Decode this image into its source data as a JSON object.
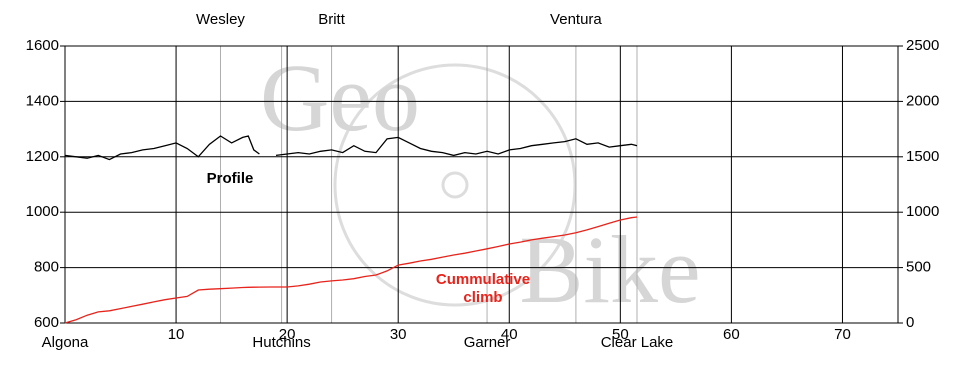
{
  "chart_data": {
    "type": "line",
    "watermark": [
      "Geo",
      "Bike"
    ],
    "x": [
      0,
      1,
      2,
      3,
      4,
      5,
      6,
      7,
      8,
      9,
      10,
      11,
      12,
      13,
      14,
      15,
      16,
      16.5,
      17,
      17.5,
      18.5,
      19,
      20,
      21,
      22,
      23,
      24,
      25,
      26,
      27,
      28,
      29,
      30,
      31,
      32,
      33,
      34,
      35,
      36,
      37,
      38,
      39,
      40,
      41,
      42,
      43,
      44,
      45,
      46,
      47,
      48,
      49,
      50,
      51,
      51.5
    ],
    "series": [
      {
        "name": "Profile",
        "color": "#000000",
        "values": [
          1205,
          1200,
          1195,
          1205,
          1190,
          1210,
          1215,
          1225,
          1230,
          1240,
          1250,
          1230,
          1200,
          1245,
          1275,
          1250,
          1270,
          1275,
          1225,
          1210,
          null,
          1205,
          1210,
          1215,
          1210,
          1220,
          1225,
          1215,
          1240,
          1220,
          1215,
          1265,
          1270,
          1250,
          1230,
          1220,
          1215,
          1205,
          1215,
          1210,
          1220,
          1210,
          1225,
          1230,
          1240,
          1245,
          1250,
          1255,
          1265,
          1245,
          1250,
          1235,
          1240,
          1245,
          1240
        ]
      },
      {
        "name": "Cummulative climb",
        "color": "#e8231b",
        "axis": "y2",
        "values": [
          0,
          30,
          70,
          100,
          110,
          130,
          150,
          170,
          190,
          210,
          226,
          240,
          298,
          305,
          310,
          315,
          320,
          322,
          323,
          324,
          325,
          325,
          325,
          335,
          350,
          370,
          380,
          388,
          400,
          420,
          433,
          470,
          523,
          540,
          560,
          575,
          595,
          614,
          630,
          650,
          670,
          690,
          713,
          730,
          750,
          765,
          780,
          794,
          815,
          840,
          870,
          900,
          930,
          950,
          957
        ]
      }
    ],
    "towns": [
      {
        "name": "Algona",
        "x": 0,
        "side": "bottom"
      },
      {
        "name": "Wesley",
        "x": 14,
        "side": "top"
      },
      {
        "name": "Hutchins",
        "x": 19.5,
        "side": "bottom"
      },
      {
        "name": "Britt",
        "x": 24,
        "side": "top"
      },
      {
        "name": "Garner",
        "x": 38,
        "side": "bottom"
      },
      {
        "name": "Ventura",
        "x": 46,
        "side": "top"
      },
      {
        "name": "Clear Lake",
        "x": 51.5,
        "side": "bottom"
      }
    ],
    "xlim": [
      0,
      75
    ],
    "xticks": [
      10,
      20,
      30,
      40,
      50,
      60,
      70
    ],
    "ylim": [
      600,
      1600
    ],
    "yticks": [
      600,
      800,
      1000,
      1200,
      1400,
      1600
    ],
    "y2lim": [
      0,
      2500
    ],
    "y2ticks": [
      0,
      500,
      1000,
      1500,
      2000,
      2500
    ],
    "grid": true
  }
}
